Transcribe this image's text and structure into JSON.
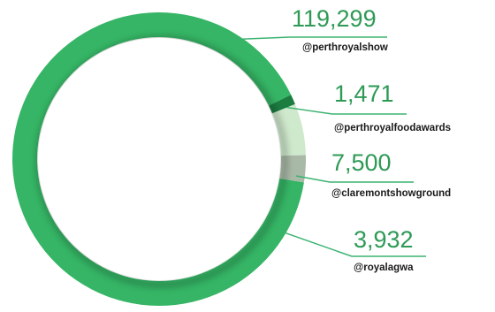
{
  "chart_data": {
    "type": "pie",
    "title": "",
    "donut": true,
    "legend": "none",
    "accent_color": "#3cb371",
    "line_color": "#3cb371",
    "value_color": "#2e9a56",
    "slices": [
      {
        "label": "@perthroyalshow",
        "value": 119299,
        "value_text": "119,299",
        "color": "#35b565"
      },
      {
        "label": "@perthroyalfoodawards",
        "value": 1471,
        "value_text": "1,471",
        "color": "#1b7d40"
      },
      {
        "label": "@claremontshowground",
        "value": 7500,
        "value_text": "7,500",
        "color": "#cfe9cd"
      },
      {
        "label": "@royalagwa",
        "value": 3932,
        "value_text": "3,932",
        "color": "#a9b9a7"
      }
    ]
  }
}
